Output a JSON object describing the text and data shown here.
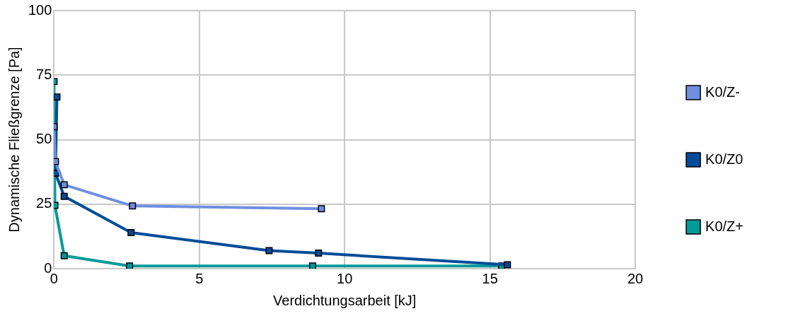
{
  "chart_data": {
    "type": "line",
    "xlabel": "Verdichtungsarbeit [kJ]",
    "ylabel": "Dynamische Fließgrenze [Pa]",
    "xlim": [
      0,
      20
    ],
    "xticks": [
      0,
      5,
      10,
      15,
      20
    ],
    "ylim": [
      0,
      100
    ],
    "yticks": [
      0,
      25,
      50,
      75,
      100
    ],
    "grid": true,
    "legend": "right",
    "marker": "square",
    "line_style": "solid",
    "series": [
      {
        "name": "K0/Z-",
        "color": "#6f8fdf",
        "x": [
          0,
          0.05,
          0.35,
          2.7,
          9.2
        ],
        "values": [
          55,
          41.5,
          32.5,
          24.3,
          23.2
        ]
      },
      {
        "name": "K0/Z0",
        "color": "#004c97",
        "x": [
          0.1,
          0.05,
          0.35,
          2.65,
          7.4,
          9.1,
          15.6
        ],
        "values": [
          66.5,
          37,
          28,
          14,
          7,
          6,
          1.5
        ]
      },
      {
        "name": "K0/Z+",
        "color": "#009999",
        "x": [
          0,
          0.03,
          0.35,
          2.6,
          8.9,
          15.4
        ],
        "values": [
          72.5,
          24.5,
          5,
          1,
          1,
          1
        ]
      }
    ]
  }
}
